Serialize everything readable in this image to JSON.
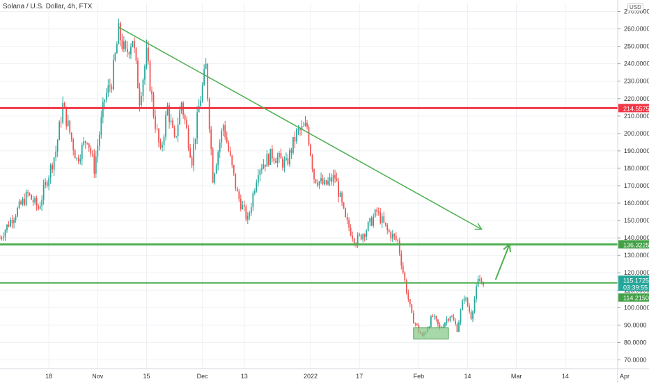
{
  "chart_data": {
    "type": "candlestick",
    "title": "Solana / U.S. Dollar, 4h, FTX",
    "currency_label": "USD",
    "ylim": [
      65,
      275
    ],
    "y_ticks": [
      "70.0000",
      "80.0000",
      "90.0000",
      "100.0000",
      "110.0000",
      "120.0000",
      "130.0000",
      "140.0000",
      "150.0000",
      "160.0000",
      "170.0000",
      "180.0000",
      "190.0000",
      "200.0000",
      "210.0000",
      "220.0000",
      "230.0000",
      "240.0000",
      "250.0000",
      "260.0000",
      "270.0000"
    ],
    "x_ticks": [
      "18",
      "Nov",
      "15",
      "Dec",
      "13",
      "2022",
      "17",
      "Feb",
      "14",
      "Mar",
      "14",
      "Apr"
    ],
    "x_range_days": [
      -14,
      163
    ],
    "x_tick_days": [
      0,
      14,
      28,
      44,
      56,
      75,
      89,
      106,
      120,
      134,
      148,
      165
    ],
    "grid": true,
    "legend": "none",
    "colors": {
      "up": "#26a69a",
      "down": "#ef5350",
      "green_line": "#4caf50",
      "red_line": "#f23645",
      "text": "#333333",
      "grid": "#eef0f3",
      "box_fill": "#81c784",
      "tag_teal": "#26a69a"
    },
    "price_path": [
      [
        -14,
        140
      ],
      [
        -11,
        150
      ],
      [
        -6,
        165
      ],
      [
        -3,
        157
      ],
      [
        2,
        190
      ],
      [
        4,
        216
      ],
      [
        8,
        185
      ],
      [
        11,
        198
      ],
      [
        13,
        180
      ],
      [
        16,
        220
      ],
      [
        18,
        230
      ],
      [
        20,
        258
      ],
      [
        22,
        245
      ],
      [
        24,
        255
      ],
      [
        26,
        220
      ],
      [
        28,
        245
      ],
      [
        30,
        212
      ],
      [
        32,
        188
      ],
      [
        34,
        215
      ],
      [
        36,
        195
      ],
      [
        38,
        218
      ],
      [
        41,
        185
      ],
      [
        43,
        215
      ],
      [
        45,
        238
      ],
      [
        47,
        175
      ],
      [
        50,
        205
      ],
      [
        54,
        165
      ],
      [
        57,
        150
      ],
      [
        60,
        180
      ],
      [
        64,
        188
      ],
      [
        68,
        182
      ],
      [
        71,
        200
      ],
      [
        74,
        204
      ],
      [
        76,
        175
      ],
      [
        79,
        170
      ],
      [
        82,
        175
      ],
      [
        85,
        150
      ],
      [
        88,
        138
      ],
      [
        91,
        145
      ],
      [
        94,
        155
      ],
      [
        97,
        144
      ],
      [
        100,
        138
      ],
      [
        102,
        115
      ],
      [
        104,
        95
      ],
      [
        107,
        83
      ],
      [
        110,
        95
      ],
      [
        112,
        88
      ],
      [
        115,
        96
      ],
      [
        117,
        88
      ],
      [
        119,
        107
      ],
      [
        121,
        95
      ],
      [
        123,
        115
      ],
      [
        124.5,
        115.2
      ]
    ],
    "trend_line": {
      "from": [
        20,
        261
      ],
      "to": [
        124,
        145
      ]
    },
    "horizontal_levels": [
      {
        "label": "214.5575",
        "value": 214.5575,
        "kind": "resistance"
      },
      {
        "label": "136.3225",
        "value": 136.3225,
        "kind": "support"
      },
      {
        "label": "114.2150",
        "value": 114.215,
        "kind": "support"
      }
    ],
    "current_price_tag": {
      "price": "115.1725",
      "countdown": "03:39:55"
    },
    "projection_arrow": {
      "from": [
        128,
        116
      ],
      "to": [
        132,
        136.3
      ]
    },
    "consolidation_box": {
      "x0": 104.5,
      "x1": 114.5,
      "y0": 82,
      "y1": 88.5
    }
  }
}
